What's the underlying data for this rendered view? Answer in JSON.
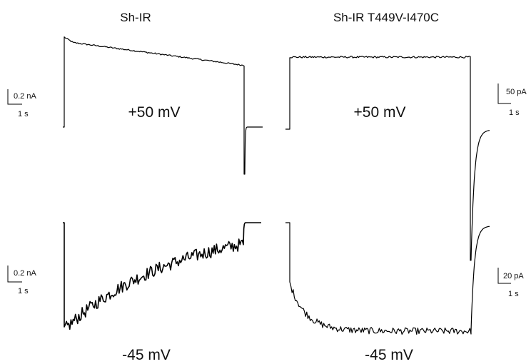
{
  "chart_data": [
    {
      "type": "line",
      "title": "Sh-IR",
      "voltage_label": "+50 mV",
      "scale_bar": {
        "current": "0.2 nA",
        "time": "1 s"
      },
      "trace_shape": {
        "baseline": 0,
        "peak": 1.0,
        "end": 0.72,
        "tail": 0,
        "undershoot": -0.55,
        "noise": 0.008
      },
      "series": [
        {
          "values": []
        }
      ]
    },
    {
      "type": "line",
      "title": "Sh-IR T449V-I470C",
      "voltage_label": "+50 mV",
      "scale_bar": {
        "current": "50 pA",
        "time": "1 s"
      },
      "trace_shape": {
        "baseline": 0,
        "peak": 1.0,
        "end": 1.0,
        "tail": -0.01,
        "undershoot": -1.82,
        "noise": 0.012
      },
      "series": [
        {
          "values": []
        }
      ]
    },
    {
      "type": "line",
      "title": "",
      "voltage_label": "-45 mV",
      "scale_bar": {
        "current": "0.2 nA",
        "time": "1 s"
      },
      "trace_shape": {
        "baseline": 0,
        "peak": -1.0,
        "end": -0.2,
        "tail": 0,
        "noise": 0.06
      },
      "series": [
        {
          "values": []
        }
      ]
    },
    {
      "type": "line",
      "title": "",
      "voltage_label": "-45 mV",
      "scale_bar": {
        "current": "20 pA",
        "time": "1 s"
      },
      "trace_shape": {
        "baseline": 0,
        "peak": -0.95,
        "end": -0.98,
        "tail": -0.03,
        "noise": 0.03
      },
      "series": [
        {
          "values": []
        }
      ]
    }
  ]
}
